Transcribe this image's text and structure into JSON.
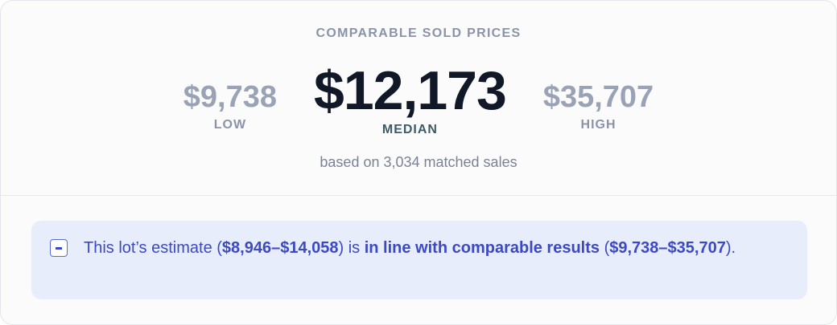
{
  "header": {
    "title": "COMPARABLE SOLD PRICES"
  },
  "stats": [
    {
      "value": "$9,738",
      "label": "LOW"
    },
    {
      "value": "$12,173",
      "label": "MEDIAN"
    },
    {
      "value": "$35,707",
      "label": "HIGH"
    }
  ],
  "note": "based on 3,034 matched sales",
  "callout": {
    "parts": [
      "This lot’s estimate (",
      "$8,946–$14,058",
      ") is ",
      "in line with comparable results",
      " (",
      "$9,738–$35,707",
      ")."
    ]
  }
}
